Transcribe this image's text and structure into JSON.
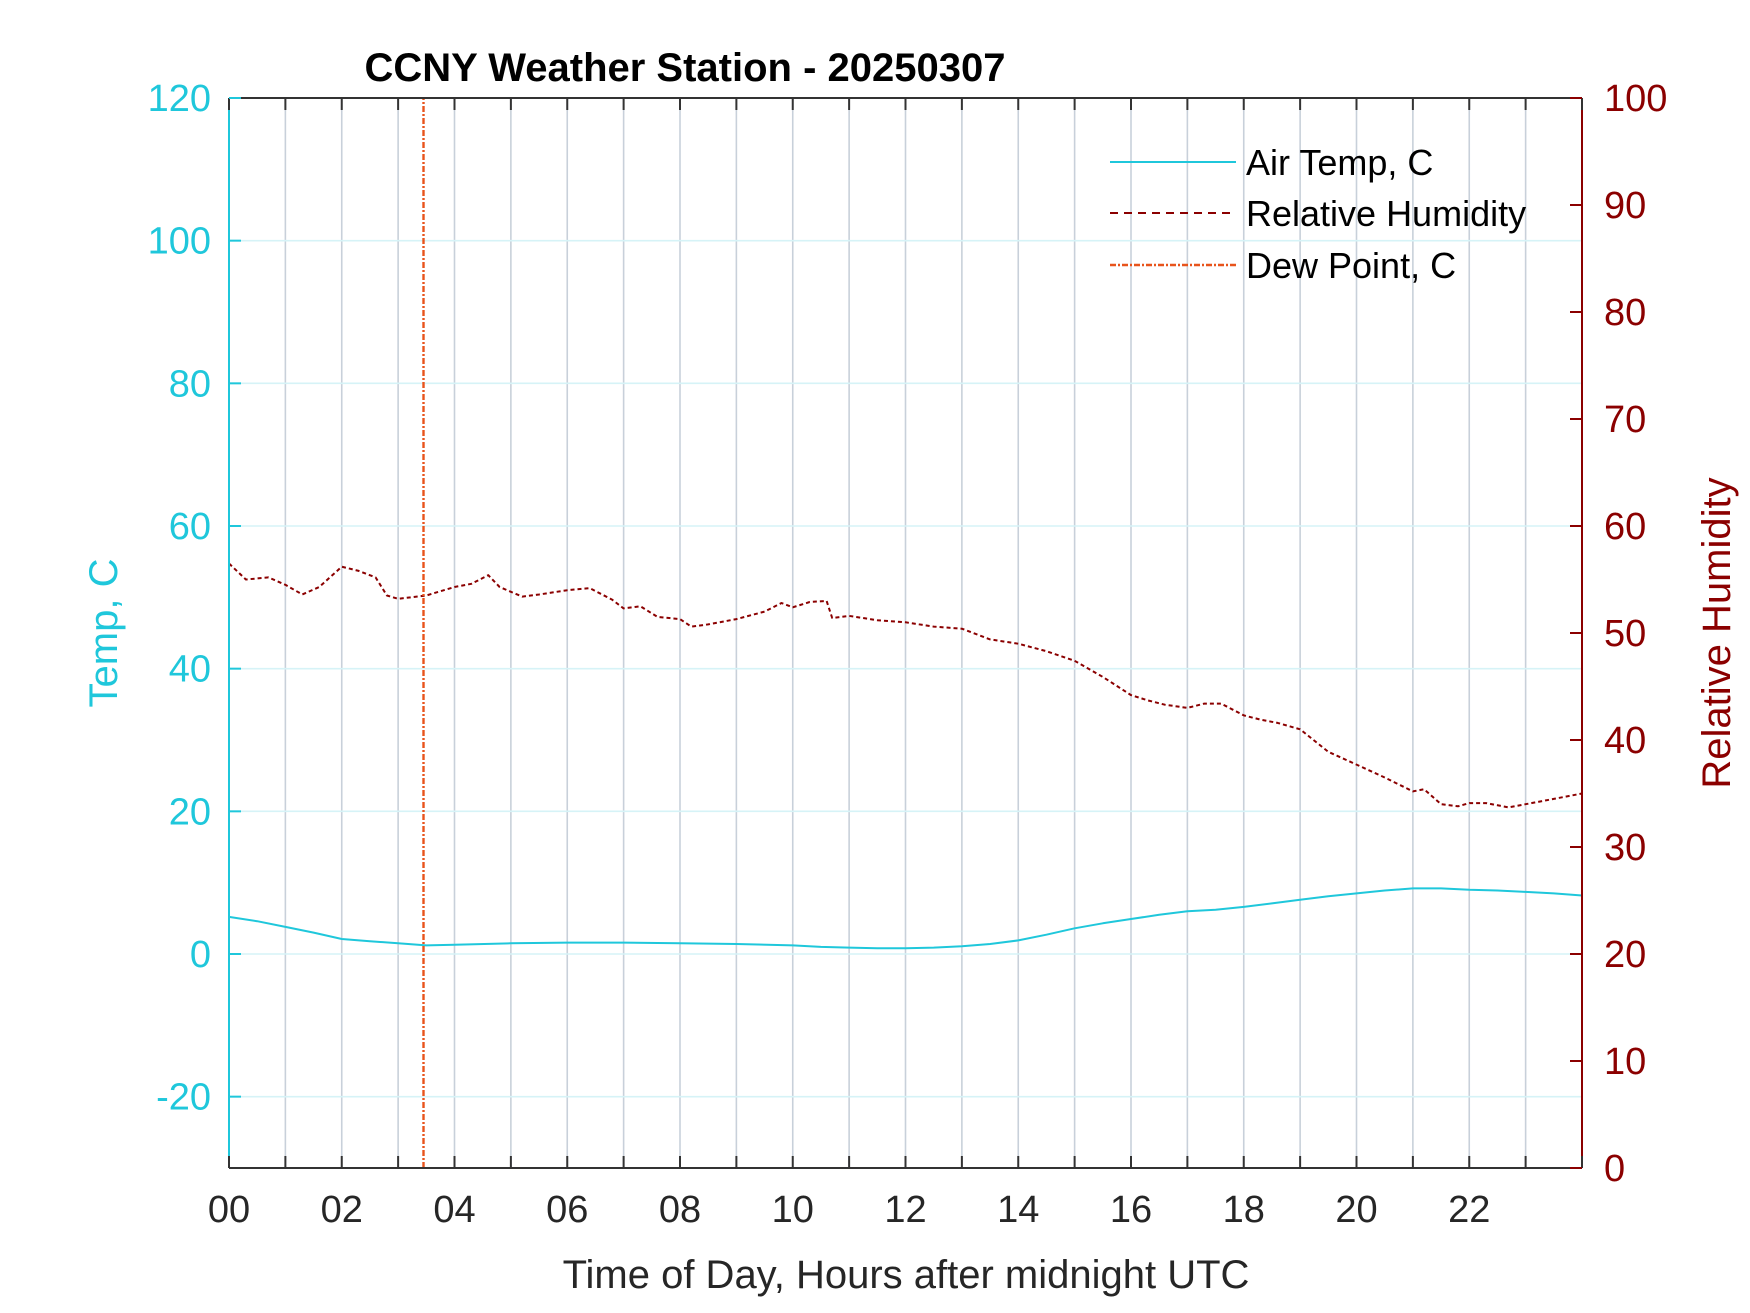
{
  "chart_data": {
    "type": "line",
    "title": "CCNY Weather Station - 20250307",
    "xlabel": "Time of Day, Hours after midnight UTC",
    "ylabel_left": "Temp, C",
    "ylabel_right": "Relative Humidity",
    "xlim": [
      0,
      24
    ],
    "ylim_left": [
      -30,
      120
    ],
    "ylim_right": [
      0,
      100
    ],
    "x_ticks": [
      0,
      2,
      4,
      6,
      8,
      10,
      12,
      14,
      16,
      18,
      20,
      22
    ],
    "x_tick_labels": [
      "00",
      "02",
      "04",
      "06",
      "08",
      "10",
      "12",
      "14",
      "16",
      "18",
      "20",
      "22"
    ],
    "y_left_ticks": [
      -20,
      0,
      20,
      40,
      60,
      80,
      100,
      120
    ],
    "y_left_tick_labels": [
      "-20",
      "0",
      "20",
      "40",
      "60",
      "80",
      "100",
      "120"
    ],
    "y_right_ticks": [
      0,
      10,
      20,
      30,
      40,
      50,
      60,
      70,
      80,
      90,
      100
    ],
    "y_right_tick_labels": [
      "0",
      "10",
      "20",
      "30",
      "40",
      "50",
      "60",
      "70",
      "80",
      "90",
      "100"
    ],
    "grid": true,
    "legend_position": "top-right",
    "colors": {
      "air_temp": "#1fc7db",
      "relative_humidity": "#8b0000",
      "dew_point": "#e8541c",
      "grid_vertical": "#c8d0da",
      "grid_horizontal": "#d6f3f7",
      "axis_dark": "#333333"
    },
    "series": [
      {
        "name": "Air Temp, C",
        "axis": "left",
        "style": "solid",
        "x": [
          0,
          0.5,
          1.0,
          1.5,
          2.0,
          2.5,
          3.0,
          3.5,
          4.0,
          5.0,
          6.0,
          7.0,
          8.0,
          9.0,
          10.0,
          10.5,
          11.0,
          11.5,
          12.0,
          12.5,
          13.0,
          13.5,
          14.0,
          14.5,
          15.0,
          15.5,
          16.0,
          16.5,
          17.0,
          17.5,
          18.0,
          18.5,
          19.0,
          19.5,
          20.0,
          20.5,
          21.0,
          21.5,
          22.0,
          22.5,
          23.0,
          23.5,
          24.0
        ],
        "y": [
          5.2,
          4.6,
          3.8,
          3.0,
          2.1,
          1.8,
          1.5,
          1.2,
          1.3,
          1.5,
          1.6,
          1.6,
          1.5,
          1.4,
          1.2,
          1.0,
          0.9,
          0.8,
          0.8,
          0.9,
          1.1,
          1.4,
          1.9,
          2.7,
          3.6,
          4.3,
          4.9,
          5.5,
          6.0,
          6.2,
          6.6,
          7.1,
          7.6,
          8.1,
          8.5,
          8.9,
          9.2,
          9.2,
          9.0,
          8.9,
          8.7,
          8.5,
          8.2
        ]
      },
      {
        "name": "Relative Humidity",
        "axis": "right",
        "style": "dashed",
        "x": [
          0,
          0.3,
          0.7,
          1.0,
          1.3,
          1.6,
          2.0,
          2.3,
          2.6,
          2.8,
          3.0,
          3.5,
          4.0,
          4.3,
          4.6,
          4.8,
          5.2,
          5.5,
          6.0,
          6.4,
          6.8,
          7.0,
          7.3,
          7.6,
          8.0,
          8.2,
          8.5,
          9.0,
          9.5,
          9.8,
          10.0,
          10.3,
          10.6,
          10.7,
          11.0,
          11.5,
          12.0,
          12.5,
          13.0,
          13.5,
          14.0,
          14.5,
          15.0,
          15.5,
          16.0,
          16.3,
          16.6,
          17.0,
          17.3,
          17.6,
          18.0,
          18.3,
          18.6,
          19.0,
          19.5,
          20.0,
          20.5,
          21.0,
          21.2,
          21.5,
          21.8,
          22.0,
          22.3,
          22.7,
          23.0,
          23.5,
          24.0
        ],
        "y": [
          56.5,
          55.0,
          55.2,
          54.5,
          53.6,
          54.3,
          56.2,
          55.8,
          55.2,
          53.5,
          53.2,
          53.5,
          54.3,
          54.6,
          55.4,
          54.3,
          53.4,
          53.6,
          54.0,
          54.2,
          53.1,
          52.3,
          52.5,
          51.5,
          51.3,
          50.6,
          50.8,
          51.3,
          52.0,
          52.8,
          52.4,
          52.9,
          53.0,
          51.4,
          51.6,
          51.2,
          51.0,
          50.6,
          50.4,
          49.4,
          49.0,
          48.3,
          47.4,
          45.9,
          44.2,
          43.7,
          43.3,
          43.0,
          43.4,
          43.4,
          42.3,
          41.9,
          41.6,
          41.0,
          38.9,
          37.7,
          36.5,
          35.2,
          35.4,
          34.0,
          33.8,
          34.1,
          34.1,
          33.7,
          34.0,
          34.5,
          35.0
        ]
      },
      {
        "name": "Dew Point, C",
        "axis": "left",
        "style": "dash-dot",
        "x": [
          3.45,
          3.45
        ],
        "y": [
          -30,
          120
        ]
      }
    ]
  }
}
